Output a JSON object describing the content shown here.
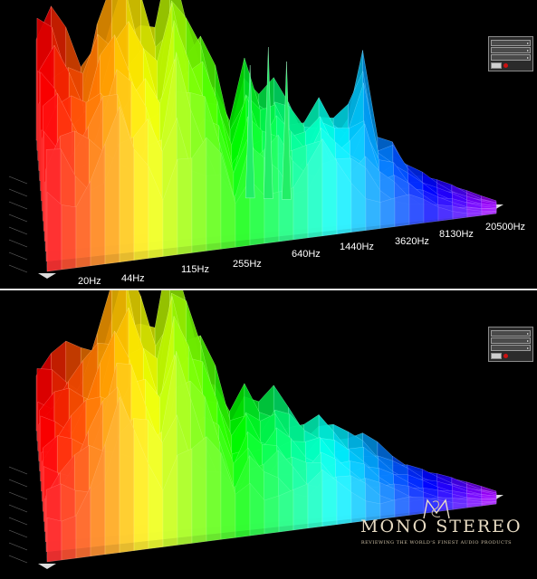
{
  "chart_data": [
    {
      "type": "area",
      "frequency_axis_labels": [
        "20Hz",
        "44Hz",
        "115Hz",
        "255Hz",
        "640Hz",
        "1440Hz",
        "3620Hz",
        "8130Hz",
        "20500Hz"
      ],
      "series": [
        {
          "values": [
            0.55,
            0.6,
            0.5,
            0.4,
            0.7,
            0.85,
            0.95,
            0.8,
            0.65,
            1.0,
            0.85,
            0.8,
            0.6,
            0.3,
            0.65,
            0.45,
            0.55,
            0.5,
            0.4,
            0.55,
            0.45,
            0.55,
            0.95,
            0.35,
            0.4,
            0.25,
            0.2,
            0.15,
            0.12,
            0.08,
            0.05,
            0.03
          ]
        },
        {
          "values": [
            0.45,
            0.5,
            0.5,
            0.55,
            0.6,
            0.7,
            0.55,
            0.6,
            0.5,
            0.9,
            0.7,
            0.65,
            0.5,
            0.25,
            0.5,
            0.5,
            0.55,
            0.45,
            0.5,
            0.6,
            0.5,
            0.45,
            0.4,
            0.35,
            0.3,
            0.25,
            0.18,
            0.12,
            0.09,
            0.06,
            0.04,
            0.03
          ]
        }
      ]
    },
    {
      "type": "area",
      "series": [
        {
          "values": [
            0.3,
            0.35,
            0.4,
            0.45,
            0.6,
            0.8,
            0.95,
            0.75,
            0.6,
            1.0,
            0.9,
            0.75,
            0.55,
            0.3,
            0.45,
            0.35,
            0.45,
            0.4,
            0.35,
            0.4,
            0.35,
            0.3,
            0.3,
            0.25,
            0.2,
            0.18,
            0.15,
            0.12,
            0.1,
            0.07,
            0.05,
            0.03
          ]
        },
        {
          "values": [
            0.25,
            0.3,
            0.35,
            0.45,
            0.55,
            0.7,
            0.6,
            0.55,
            0.5,
            0.85,
            0.7,
            0.6,
            0.45,
            0.25,
            0.4,
            0.35,
            0.4,
            0.35,
            0.3,
            0.35,
            0.3,
            0.28,
            0.25,
            0.2,
            0.18,
            0.15,
            0.12,
            0.1,
            0.08,
            0.06,
            0.04,
            0.03
          ]
        }
      ]
    }
  ],
  "watermark": {
    "name": "MONO STEREO",
    "tagline": "REVIEWING THE WORLD'S FINEST AUDIO PRODUCTS"
  },
  "colors": {
    "low": "#ff1a00",
    "mid": "#ffff00",
    "upper_mid": "#00dd55",
    "high": "#00ccff",
    "top": "#c000ff"
  }
}
